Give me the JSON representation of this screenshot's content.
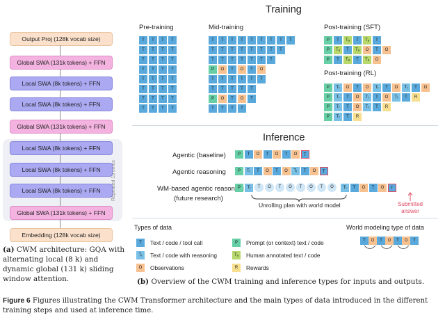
{
  "architecture": {
    "layers": [
      {
        "label": "Output Proj (128k vocab size)",
        "kind": "out"
      },
      {
        "label": "Global SWA (131k tokens) + FFN",
        "kind": "glob"
      },
      {
        "label": "Local SWA (8k tokens) + FFN",
        "kind": "loc"
      },
      {
        "label": "Local SWA (8k tokens) + FFN",
        "kind": "loc"
      },
      {
        "label": "Global SWA (131k tokens) + FFN",
        "kind": "glob"
      },
      {
        "label": "Local SWA (8k tokens) + FFN",
        "kind": "loc"
      },
      {
        "label": "Local SWA (8k tokens) + FFN",
        "kind": "loc"
      },
      {
        "label": "Local SWA (8k tokens) + FFN",
        "kind": "loc"
      },
      {
        "label": "Global SWA (131k tokens) + FFN",
        "kind": "glob"
      },
      {
        "label": "Embedding (128k vocab size)",
        "kind": "emb"
      }
    ],
    "repeat_label": "Repeated 15 times",
    "caption_prefix": "(a)",
    "caption": "CWM architecture: GQA with alternating local (8 k) and dynamic global (131 k) sliding window attention."
  },
  "training": {
    "title": "Training",
    "pretraining": {
      "title": "Pre-training"
    },
    "midtraining": {
      "title": "Mid-training"
    },
    "sft": {
      "title": "Post-training (SFT)"
    },
    "rl": {
      "title": "Post-training (RL)"
    }
  },
  "inference": {
    "title": "Inference",
    "rows": [
      {
        "label": "Agentic (baseline)"
      },
      {
        "label": "Agentic reasoning"
      },
      {
        "label": "WM-based agentic reasoning",
        "sublabel": "(future research)"
      }
    ],
    "unroll_label": "Unrolling plan with world model",
    "submitted_label_1": "Submitted",
    "submitted_label_2": "answer"
  },
  "legend": {
    "title": "Types of data",
    "items": [
      {
        "glyph": "T",
        "label": "Text / code / tool call"
      },
      {
        "glyph": "Tr",
        "label": "Text / code with reasoning"
      },
      {
        "glyph": "O",
        "label": "Observations"
      },
      {
        "glyph": "P",
        "label": "Prompt (or context) text / code"
      },
      {
        "glyph": "T",
        "label": "Human annotated text / code"
      },
      {
        "glyph": "R",
        "label": "Rewards"
      }
    ],
    "wm_title": "World modeling type of data"
  },
  "caption_b": {
    "prefix": "(b)",
    "text": "Overview of the CWM training and inference types for inputs and outputs."
  },
  "figure_caption": {
    "label": "Figure 6",
    "text": "Figures illustrating the CWM Transformer architecture and the main types of data introduced in the different training steps and used at inference time."
  },
  "colors": {
    "text_token": "#5aa9dd",
    "reasoning_token": "#79c0e6",
    "prompt_token": "#67cfa6",
    "observation_token": "#f7c190",
    "human_token": "#b7d96b",
    "reward_token": "#f7df8f",
    "submitted_border": "#e04a63",
    "local_layer": "#aaa9f2",
    "global_layer": "#f3b2df",
    "io_layer": "#fbe1cc"
  }
}
